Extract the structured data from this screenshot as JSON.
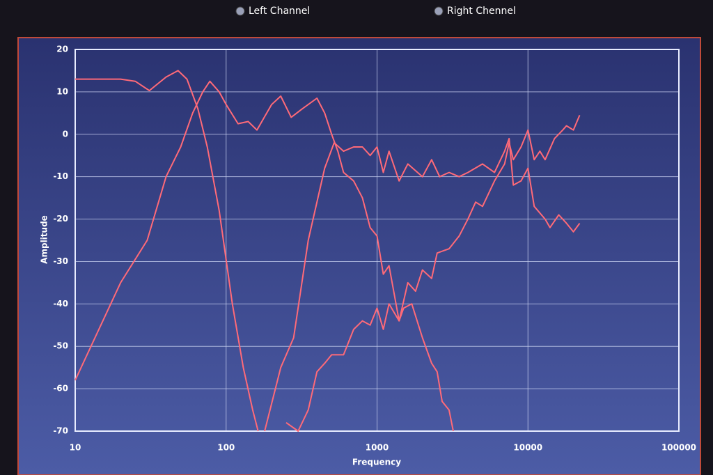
{
  "chart_data": {
    "type": "line",
    "x_label": "Frequency",
    "y_label": "Amplitude",
    "xscale": "log",
    "grid": true,
    "xlim": [
      10,
      100000
    ],
    "xticks": [
      10,
      100,
      1000,
      10000,
      100000
    ],
    "ylim": [
      -70,
      20
    ],
    "yticks": [
      -70,
      -60,
      -50,
      -40,
      -30,
      -20,
      -10,
      0,
      10,
      20
    ],
    "legend": [
      {
        "name": "Left Channel",
        "color": "#7fdcff"
      },
      {
        "name": "Right Chennel",
        "color": "#ff4a4a"
      }
    ],
    "series": [
      {
        "color": "#ff6a78",
        "x": [
          10,
          20,
          25,
          31,
          40,
          48,
          55,
          65,
          75,
          90,
          110,
          130,
          150,
          163
        ],
        "values": [
          13,
          13,
          12.5,
          10.3,
          13.5,
          15,
          13,
          6,
          -3,
          -18,
          -40,
          -55,
          -65,
          -70
        ]
      },
      {
        "color": "#ff6a78",
        "x": [
          10,
          20,
          30,
          40,
          50,
          60,
          70,
          78,
          90,
          100,
          120,
          140,
          160,
          200,
          230,
          270,
          320,
          400,
          450,
          500,
          550,
          600,
          700,
          800,
          900,
          1000,
          1100,
          1200,
          1400,
          1500,
          1700,
          2000,
          2300,
          2500,
          2700,
          3000,
          3200
        ],
        "values": [
          -58,
          -35,
          -25,
          -10,
          -3,
          5,
          10,
          12.5,
          10,
          7,
          2.5,
          3,
          1,
          7,
          9,
          4,
          6,
          8.5,
          5,
          0,
          -4,
          -9,
          -11,
          -15,
          -22,
          -24,
          -33,
          -31,
          -44,
          -41,
          -40,
          -48,
          -54,
          -56,
          -63,
          -65,
          -70
        ]
      },
      {
        "color": "#ff6a78",
        "x": [
          180,
          230,
          280,
          350,
          450,
          520,
          600,
          700,
          800,
          900,
          1000,
          1100,
          1200,
          1400,
          1600,
          2000,
          2300,
          2600,
          3000,
          3500,
          4000,
          5000,
          6000,
          7000,
          7500,
          8000,
          9000,
          10000,
          11000,
          13000,
          14000,
          16000,
          18000,
          20000,
          22000
        ],
        "values": [
          -70,
          -55,
          -48,
          -25,
          -8,
          -2,
          -4,
          -3,
          -3,
          -5,
          -3,
          -9,
          -4,
          -11,
          -7,
          -10,
          -6,
          -10,
          -9,
          -10,
          -9,
          -7,
          -9,
          -4,
          -1,
          -12,
          -11,
          -8,
          -17,
          -20,
          -22,
          -19,
          -21,
          -23,
          -21
        ]
      },
      {
        "color": "#ff6a78",
        "x": [
          250,
          300,
          350,
          400,
          450,
          500,
          600,
          700,
          800,
          900,
          1000,
          1100,
          1200,
          1400,
          1600,
          1800,
          2000,
          2300,
          2500,
          3000,
          3500,
          4000,
          4500,
          5000,
          6000,
          7000,
          7500,
          8000,
          9000,
          10000,
          11000,
          12000,
          13000,
          15000,
          17000,
          18000,
          20000,
          22000
        ],
        "values": [
          -68,
          -70,
          -65,
          -56,
          -54,
          -52,
          -52,
          -46,
          -44,
          -45,
          -41,
          -46,
          -40,
          -44,
          -35,
          -37,
          -32,
          -34,
          -28,
          -27,
          -24,
          -20,
          -16,
          -17,
          -11,
          -7,
          -2,
          -6,
          -3,
          1,
          -6,
          -4,
          -6,
          -1,
          1,
          2,
          1,
          4.5
        ]
      }
    ]
  }
}
